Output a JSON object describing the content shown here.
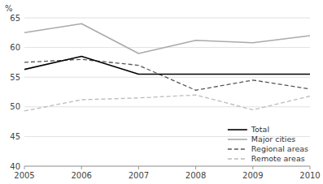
{
  "chart_data": {
    "type": "line",
    "x": [
      2005,
      2006,
      2007,
      2008,
      2009,
      2010
    ],
    "series": [
      {
        "name": "Total",
        "color": "#000000",
        "line_style": "solid",
        "values": [
          56.3,
          58.5,
          55.5,
          55.5,
          55.5,
          55.5
        ]
      },
      {
        "name": "Major cities",
        "color": "#aaaaaa",
        "line_style": "solid",
        "values": [
          62.5,
          64.0,
          59.0,
          61.2,
          60.8,
          62.0
        ]
      },
      {
        "name": "Regional areas",
        "color": "#555555",
        "line_style": "dashed",
        "values": [
          57.5,
          58.0,
          57.0,
          52.8,
          54.5,
          53.0
        ]
      },
      {
        "name": "Remote areas",
        "color": "#bbbbbb",
        "line_style": "dashed",
        "values": [
          49.3,
          51.2,
          51.5,
          52.0,
          49.5,
          51.8
        ]
      }
    ],
    "xlim": [
      2005,
      2010
    ],
    "xticks": [
      2005,
      2006,
      2007,
      2008,
      2009,
      2010
    ],
    "ylim": [
      40,
      65
    ],
    "yticks": [
      40,
      45,
      50,
      55,
      60,
      65
    ],
    "ylabel": "%",
    "grid": true,
    "legend": "lower right"
  }
}
